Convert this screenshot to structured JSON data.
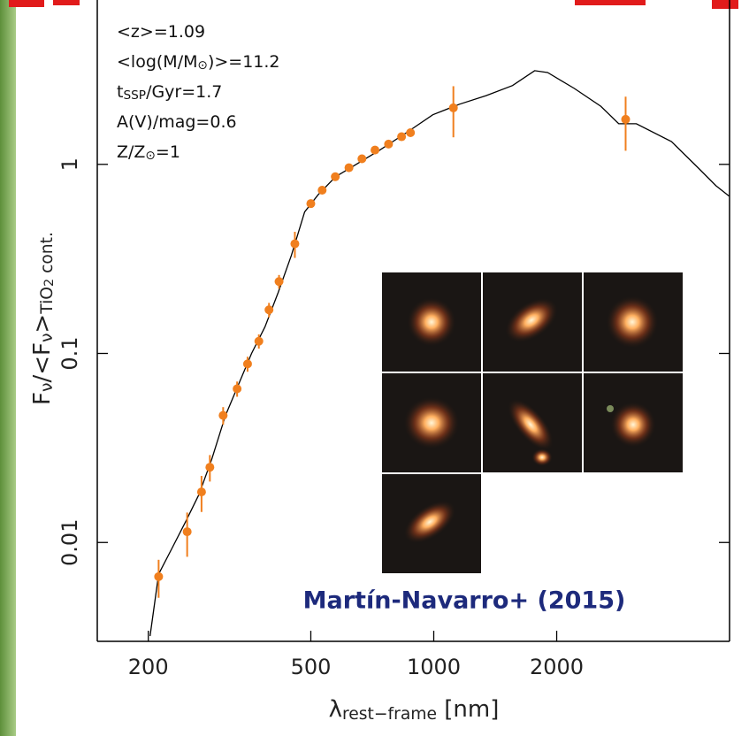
{
  "chart_data": {
    "type": "line",
    "xscale": "log",
    "yscale": "log",
    "xlim": [
      150,
      5300
    ],
    "ylim": [
      0.003,
      7.4
    ],
    "xticks": [
      200,
      500,
      1000,
      2000
    ],
    "yticks": [
      0.01,
      0.1,
      1
    ],
    "xlabel": [
      {
        "text": "λ"
      },
      {
        "text": "rest−frame",
        "sub": true
      },
      {
        "text": " [nm]"
      }
    ],
    "ylabel": [
      {
        "text": "F"
      },
      {
        "text": "ν",
        "sub": true
      },
      {
        "text": "/<F"
      },
      {
        "text": "ν",
        "sub": true
      },
      {
        "text": ">"
      },
      {
        "text": "TiO",
        "sub": true
      },
      {
        "text": "2",
        "sub2": true
      },
      {
        "text": " cont.",
        "sub": true
      }
    ],
    "annotations": [
      [
        {
          "text": "<z>=1.09"
        }
      ],
      [
        {
          "text": "<log(M/M"
        },
        {
          "text": "⊙",
          "sub": true
        },
        {
          "text": ")>=11.2"
        }
      ],
      [
        {
          "text": "t"
        },
        {
          "text": "SSP",
          "sub": true
        },
        {
          "text": "/Gyr=1.7"
        }
      ],
      [
        {
          "text": "A(V)/mag=0.6"
        }
      ],
      [
        {
          "text": "Z/Z"
        },
        {
          "text": "⊙",
          "sub": true
        },
        {
          "text": "=1"
        }
      ]
    ],
    "credit": "Martín-Navarro+ (2015)",
    "series": [
      {
        "mark": "line",
        "color": "#000000",
        "x": [
          202,
          212,
          229,
          247,
          266,
          286,
          309,
          333,
          358,
          386,
          416,
          448,
          483,
          521,
          575,
          636,
          738,
          857,
          995,
          1156,
          1343,
          1559,
          1766,
          1901,
          2209,
          2565,
          2837,
          3133,
          3820,
          4437,
          4910,
          5285
        ],
        "values": [
          0.0032,
          0.0068,
          0.0094,
          0.0129,
          0.0179,
          0.0275,
          0.047,
          0.069,
          0.1,
          0.138,
          0.21,
          0.33,
          0.56,
          0.69,
          0.86,
          0.98,
          1.19,
          1.47,
          1.83,
          2.08,
          2.31,
          2.61,
          3.13,
          3.06,
          2.52,
          2.03,
          1.64,
          1.64,
          1.32,
          0.96,
          0.77,
          0.68
        ]
      },
      {
        "mark": "points",
        "color": "#f07f1e",
        "x": [
          212,
          249,
          270,
          283,
          305,
          330,
          350,
          373,
          395,
          418,
          457,
          500,
          533,
          574,
          620,
          667,
          718,
          775,
          834,
          877,
          1117,
          2950
        ],
        "values": [
          0.0066,
          0.0114,
          0.0185,
          0.025,
          0.047,
          0.065,
          0.088,
          0.116,
          0.17,
          0.24,
          0.38,
          0.62,
          0.73,
          0.86,
          0.96,
          1.07,
          1.19,
          1.28,
          1.4,
          1.47,
          1.99,
          1.73
        ],
        "errors": [
          0.0015,
          0.003,
          0.004,
          0.004,
          0.005,
          0.006,
          0.008,
          0.01,
          0.015,
          0.02,
          0.06,
          0.03,
          0.03,
          0.03,
          0.03,
          0.03,
          0.03,
          0.04,
          0.04,
          0.04,
          0.6,
          0.55
        ]
      }
    ]
  }
}
